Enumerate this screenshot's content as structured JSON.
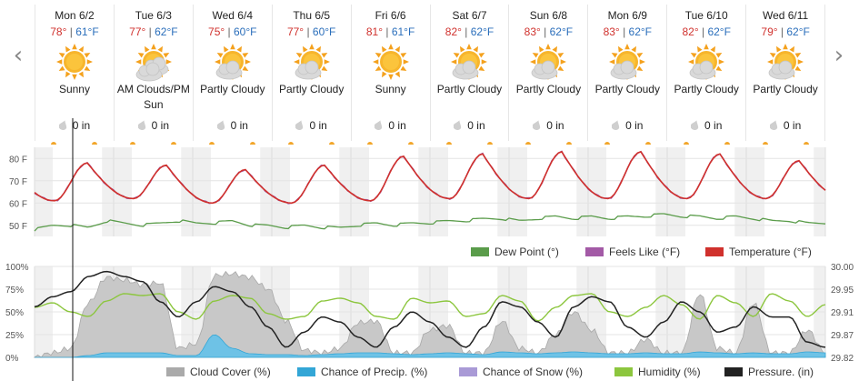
{
  "nav": {
    "prev_icon": "chevron-left-icon",
    "next_icon": "chevron-right-icon"
  },
  "colors": {
    "temperature": "#d0312d",
    "feels_like": "#a35aa6",
    "dew_point": "#5a9c4a",
    "cloud_cover": "#aaaaaa",
    "chance_precip": "#33a6d6",
    "chance_snow": "#a99ad6",
    "humidity": "#8cc63e",
    "pressure": "#222222",
    "high": "#d0312d",
    "low": "#2a6ebb"
  },
  "days": [
    {
      "name": "Mon 6/2",
      "high": "78°",
      "low": "61°F",
      "icon": "sunny-icon",
      "condition": "Sunny",
      "precip": "0 in"
    },
    {
      "name": "Tue 6/3",
      "high": "77°",
      "low": "62°F",
      "icon": "cloudy-sun-icon",
      "condition": "AM Clouds/PM Sun",
      "precip": "0 in"
    },
    {
      "name": "Wed 6/4",
      "high": "75°",
      "low": "60°F",
      "icon": "partly-cloudy-icon",
      "condition": "Partly Cloudy",
      "precip": "0 in"
    },
    {
      "name": "Thu 6/5",
      "high": "77°",
      "low": "60°F",
      "icon": "partly-cloudy-icon",
      "condition": "Partly Cloudy",
      "precip": "0 in"
    },
    {
      "name": "Fri 6/6",
      "high": "81°",
      "low": "61°F",
      "icon": "sunny-icon",
      "condition": "Sunny",
      "precip": "0 in"
    },
    {
      "name": "Sat 6/7",
      "high": "82°",
      "low": "62°F",
      "icon": "partly-cloudy-icon",
      "condition": "Partly Cloudy",
      "precip": "0 in"
    },
    {
      "name": "Sun 6/8",
      "high": "83°",
      "low": "62°F",
      "icon": "partly-cloudy-icon",
      "condition": "Partly Cloudy",
      "precip": "0 in"
    },
    {
      "name": "Mon 6/9",
      "high": "83°",
      "low": "62°F",
      "icon": "partly-cloudy-icon",
      "condition": "Partly Cloudy",
      "precip": "0 in"
    },
    {
      "name": "Tue 6/10",
      "high": "82°",
      "low": "62°F",
      "icon": "partly-cloudy-icon",
      "condition": "Partly Cloudy",
      "precip": "0 in"
    },
    {
      "name": "Wed 6/11",
      "high": "79°",
      "low": "62°F",
      "icon": "partly-cloudy-icon",
      "condition": "Partly Cloudy",
      "precip": "0 in"
    }
  ],
  "legend_top": {
    "dew_point": "Dew Point (°)",
    "feels_like": "Feels Like (°F)",
    "temperature": "Temperature (°F)"
  },
  "legend_bottom": {
    "cloud_cover": "Cloud Cover (%)",
    "chance_precip": "Chance of Precip. (%)",
    "chance_snow": "Chance of Snow (%)",
    "humidity": "Humidity (%)",
    "pressure": "Pressure. (in)"
  },
  "chart_data": [
    {
      "type": "line",
      "x_unit": "hours from start of Mon 6/2",
      "yticks": [
        "80 F",
        "70 F",
        "60 F",
        "50 F"
      ],
      "ylim": [
        45,
        85
      ],
      "series": [
        {
          "name": "Temperature (°F)",
          "key": "temperature",
          "daily_high": [
            78,
            77,
            75,
            77,
            81,
            82,
            83,
            83,
            82,
            79
          ],
          "daily_low": [
            61,
            62,
            60,
            60,
            61,
            62,
            62,
            62,
            62,
            62
          ]
        },
        {
          "name": "Feels Like (°F)",
          "key": "feels_like",
          "daily_high": [
            78,
            77,
            75,
            77,
            81,
            82,
            83,
            83,
            82,
            79
          ],
          "daily_low": [
            61,
            62,
            60,
            60,
            61,
            62,
            62,
            62,
            62,
            62
          ]
        },
        {
          "name": "Dew Point (°)",
          "key": "dew_point",
          "values": [
            48,
            50,
            50,
            49,
            52,
            51,
            50,
            51,
            52,
            51,
            51,
            52,
            50,
            50,
            49,
            50,
            49,
            49,
            50,
            51,
            50,
            51,
            51,
            52,
            52,
            53,
            53,
            52,
            53,
            54,
            53,
            54,
            53,
            54,
            54,
            55,
            54,
            54,
            53,
            54,
            53,
            52,
            52,
            51,
            51
          ]
        }
      ]
    },
    {
      "type": "area",
      "yticks_left": [
        "100%",
        "75%",
        "50%",
        "25%",
        "0%"
      ],
      "ylim_left": [
        0,
        100
      ],
      "yticks_right": [
        "30.00",
        "29.95",
        "29.91",
        "29.87",
        "29.82"
      ],
      "ylim_right": [
        29.82,
        30.0
      ],
      "series": [
        {
          "name": "Cloud Cover (%)",
          "key": "cloud_cover",
          "values": [
            0,
            5,
            10,
            60,
            88,
            85,
            80,
            82,
            10,
            15,
            90,
            92,
            88,
            75,
            40,
            8,
            5,
            10,
            38,
            40,
            5,
            5,
            30,
            35,
            5,
            5,
            40,
            10,
            5,
            25,
            50,
            30,
            5,
            5,
            20,
            5,
            5,
            70,
            10,
            5,
            60,
            5,
            5,
            30,
            5
          ]
        },
        {
          "name": "Chance of Precip. (%)",
          "key": "chance_precip",
          "values": [
            0,
            0,
            0,
            2,
            5,
            5,
            5,
            5,
            2,
            2,
            25,
            10,
            4,
            3,
            3,
            2,
            3,
            4,
            5,
            5,
            4,
            3,
            4,
            5,
            4,
            3,
            6,
            5,
            4,
            5,
            6,
            5,
            4,
            4,
            5,
            4,
            4,
            6,
            5,
            4,
            5,
            4,
            4,
            6,
            5
          ]
        },
        {
          "name": "Chance of Snow (%)",
          "key": "chance_snow",
          "values": [
            0,
            0,
            0,
            0,
            0,
            0,
            0,
            0,
            0,
            0,
            0,
            0,
            0,
            0,
            0,
            0,
            0,
            0,
            0,
            0,
            0,
            0,
            0,
            0,
            0,
            0,
            0,
            0,
            0,
            0,
            0,
            0,
            0,
            0,
            0,
            0,
            0,
            0,
            0,
            0,
            0,
            0,
            0,
            0,
            0
          ]
        },
        {
          "name": "Humidity (%)",
          "key": "humidity",
          "values": [
            55,
            60,
            50,
            45,
            62,
            70,
            68,
            70,
            50,
            42,
            62,
            68,
            65,
            48,
            42,
            45,
            62,
            65,
            60,
            45,
            42,
            65,
            60,
            62,
            45,
            48,
            68,
            62,
            40,
            55,
            68,
            70,
            50,
            45,
            55,
            68,
            58,
            42,
            68,
            60,
            45,
            70,
            62,
            45,
            58
          ]
        },
        {
          "name": "Pressure. (in)",
          "key": "pressure",
          "values": [
            29.92,
            29.94,
            29.95,
            29.98,
            29.99,
            29.98,
            29.97,
            29.93,
            29.9,
            29.93,
            29.96,
            29.95,
            29.92,
            29.88,
            29.84,
            29.87,
            29.9,
            29.89,
            29.86,
            29.84,
            29.88,
            29.91,
            29.89,
            29.86,
            29.84,
            29.88,
            29.93,
            29.92,
            29.89,
            29.86,
            29.92,
            29.94,
            29.93,
            29.88,
            29.86,
            29.89,
            29.93,
            29.91,
            29.87,
            29.88,
            29.92,
            29.9,
            29.9,
            29.85,
            29.84
          ]
        }
      ]
    }
  ]
}
